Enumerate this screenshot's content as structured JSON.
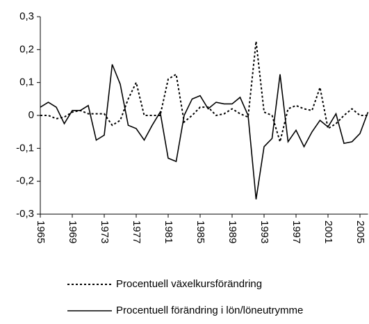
{
  "chart_data": {
    "type": "line",
    "x": [
      1965,
      1966,
      1967,
      1968,
      1969,
      1970,
      1971,
      1972,
      1973,
      1974,
      1975,
      1976,
      1977,
      1978,
      1979,
      1980,
      1981,
      1982,
      1983,
      1984,
      1985,
      1986,
      1987,
      1988,
      1989,
      1990,
      1991,
      1992,
      1993,
      1994,
      1995,
      1996,
      1997,
      1998,
      1999,
      2000,
      2001,
      2002,
      2003,
      2004,
      2005,
      2006
    ],
    "xlim": [
      1965,
      2006
    ],
    "xticks": [
      1965,
      1969,
      1973,
      1977,
      1981,
      1985,
      1989,
      1993,
      1997,
      2001,
      2005
    ],
    "ylim": [
      -0.3,
      0.3
    ],
    "yticks": [
      {
        "value": -0.3,
        "label": "-0,3"
      },
      {
        "value": -0.2,
        "label": "-0,2"
      },
      {
        "value": -0.1,
        "label": "-0,1"
      },
      0,
      {
        "value": 0.1,
        "label": "0,1"
      },
      {
        "value": 0.2,
        "label": "0,2"
      },
      {
        "value": 0.3,
        "label": "0,3"
      }
    ],
    "series": [
      {
        "name": "Procentuell växelkursförändring",
        "color": "#000000",
        "dash": "dashed",
        "values": [
          0.0,
          0.0,
          -0.01,
          -0.005,
          0.01,
          0.015,
          0.005,
          0.005,
          0.005,
          -0.03,
          -0.015,
          0.05,
          0.1,
          0.0,
          0.0,
          0.0,
          0.11,
          0.125,
          -0.02,
          0.0,
          0.025,
          0.025,
          0.0,
          0.005,
          0.02,
          0.005,
          -0.005,
          0.225,
          0.01,
          0.0,
          -0.08,
          0.02,
          0.03,
          0.02,
          0.015,
          0.085,
          -0.04,
          -0.025,
          0.0,
          0.02,
          0.0,
          0.0
        ]
      },
      {
        "name": "Procentuell förändring i lön/löneutrymme",
        "color": "#000000",
        "dash": "solid",
        "values": [
          0.025,
          0.04,
          0.025,
          -0.025,
          0.015,
          0.015,
          0.03,
          -0.075,
          -0.06,
          0.155,
          0.095,
          -0.03,
          -0.04,
          -0.075,
          -0.03,
          0.01,
          -0.13,
          -0.14,
          0.0,
          0.05,
          0.06,
          0.02,
          0.04,
          0.035,
          0.035,
          0.055,
          0.0,
          -0.255,
          -0.095,
          -0.07,
          0.125,
          -0.08,
          -0.045,
          -0.095,
          -0.05,
          -0.015,
          -0.035,
          0.005,
          -0.085,
          -0.08,
          -0.055,
          0.01
        ]
      }
    ]
  }
}
